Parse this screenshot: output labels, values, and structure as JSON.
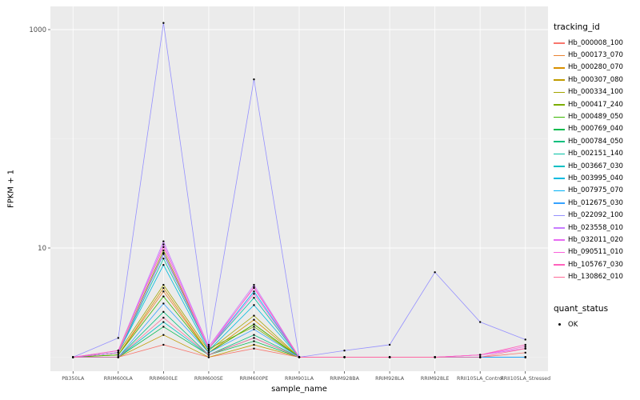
{
  "chart_data": {
    "type": "line",
    "title": "",
    "xlabel": "sample_name",
    "ylabel": "FPKM + 1",
    "y_scale": "log10",
    "panel_bg": "#EBEBEB",
    "grid_color": "#FFFFFF",
    "categories": [
      "PB350LA",
      "RRIM600LA",
      "RRIM600LE",
      "RRIM600SE",
      "RRIM600PE",
      "RRIM901LA",
      "RRIM928BA",
      "RRIM928LA",
      "RRIM928LE",
      "RRII105LA_Control",
      "RRII105LA_Stressed"
    ],
    "y_ticks": [
      {
        "label": "1000",
        "value": 1000
      },
      {
        "label": "10",
        "value": 10
      }
    ],
    "grid": {
      "major_y": [
        10,
        1000
      ],
      "minor_y": [
        1,
        100
      ]
    },
    "legend_title": "tracking_id",
    "quant_legend": {
      "title": "quant_status",
      "items": [
        "OK"
      ]
    },
    "series": [
      {
        "name": "Hb_000008_100",
        "color": "#F8766D",
        "values": [
          1,
          1,
          1.3,
          1,
          1.2,
          1,
          1,
          1,
          1,
          1,
          1.1
        ]
      },
      {
        "name": "Hb_000173_070",
        "color": "#EA8331",
        "values": [
          1,
          1.05,
          4.0,
          1.1,
          2.0,
          1,
          1,
          1,
          1,
          1,
          1
        ]
      },
      {
        "name": "Hb_000280_070",
        "color": "#D89000",
        "values": [
          1,
          1.05,
          4.3,
          1.1,
          2.2,
          1,
          1,
          1,
          1,
          1,
          1
        ]
      },
      {
        "name": "Hb_000307_080",
        "color": "#C09B00",
        "values": [
          1,
          1,
          1.6,
          1,
          1.3,
          1,
          1,
          1,
          1,
          1,
          1
        ]
      },
      {
        "name": "Hb_000334_100",
        "color": "#A3A500",
        "values": [
          1,
          1.1,
          4.6,
          1.15,
          2.4,
          1,
          1,
          1,
          1,
          1,
          1
        ]
      },
      {
        "name": "Hb_000417_240",
        "color": "#7CAE00",
        "values": [
          1,
          1.1,
          9.5,
          1.2,
          1.9,
          1,
          1,
          1,
          1,
          1,
          1
        ]
      },
      {
        "name": "Hb_000489_050",
        "color": "#39B600",
        "values": [
          1,
          1.05,
          3.6,
          1.1,
          2.0,
          1,
          1,
          1,
          1,
          1,
          1
        ]
      },
      {
        "name": "Hb_000769_040",
        "color": "#00BB4E",
        "values": [
          1,
          1,
          1.9,
          1.05,
          1.4,
          1,
          1,
          1,
          1,
          1,
          1
        ]
      },
      {
        "name": "Hb_000784_050",
        "color": "#00BF7D",
        "values": [
          1,
          1,
          2.6,
          1.05,
          1.6,
          1,
          1,
          1,
          1,
          1,
          1
        ]
      },
      {
        "name": "Hb_002151_140",
        "color": "#00C1A3",
        "values": [
          1,
          1.1,
          8.0,
          1.2,
          3.5,
          1,
          1,
          1,
          1,
          1,
          1
        ]
      },
      {
        "name": "Hb_003667_030",
        "color": "#00BFC4",
        "values": [
          1,
          1,
          2.1,
          1.05,
          1.5,
          1,
          1,
          1,
          1,
          1,
          1
        ]
      },
      {
        "name": "Hb_003995_040",
        "color": "#00BAE0",
        "values": [
          1,
          1.1,
          7.0,
          1.15,
          3.0,
          1,
          1,
          1,
          1,
          1,
          1
        ]
      },
      {
        "name": "Hb_007975_070",
        "color": "#00B0F6",
        "values": [
          1,
          1.1,
          8.8,
          1.2,
          4.0,
          1,
          1,
          1,
          1,
          1,
          1
        ]
      },
      {
        "name": "Hb_012675_030",
        "color": "#35A2FF",
        "values": [
          1,
          1,
          3.1,
          1.1,
          1.8,
          1,
          1,
          1,
          1,
          1,
          1
        ]
      },
      {
        "name": "Hb_022092_100",
        "color": "#9590FF",
        "values": [
          1,
          1.5,
          1150,
          1.3,
          350,
          1,
          1.15,
          1.3,
          6,
          2.1,
          1.45
        ]
      },
      {
        "name": "Hb_023558_010",
        "color": "#C77CFF",
        "values": [
          1,
          1.15,
          11.5,
          1.25,
          4.6,
          1,
          1,
          1,
          1,
          1.05,
          1.2
        ]
      },
      {
        "name": "Hb_032011_020",
        "color": "#E76BF3",
        "values": [
          1,
          1.15,
          10.8,
          1.25,
          4.3,
          1,
          1,
          1,
          1,
          1.05,
          1.2
        ]
      },
      {
        "name": "Hb_090511_010",
        "color": "#FA62DB",
        "values": [
          1,
          1.1,
          9.0,
          1.2,
          3.8,
          1,
          1,
          1,
          1,
          1.05,
          1.25
        ]
      },
      {
        "name": "Hb_105767_030",
        "color": "#FF62BC",
        "values": [
          1,
          1.15,
          10.2,
          1.2,
          4.4,
          1,
          1,
          1,
          1,
          1.05,
          1.3
        ]
      },
      {
        "name": "Hb_130862_010",
        "color": "#FF6A98",
        "values": [
          1,
          1,
          2.3,
          1.05,
          1.5,
          1,
          1,
          1,
          1,
          1,
          1.2
        ]
      }
    ]
  }
}
